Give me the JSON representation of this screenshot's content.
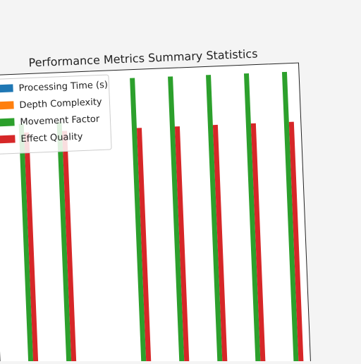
{
  "chart_data": {
    "type": "bar",
    "title": "Performance Metrics Summary Statistics",
    "xlabel": "",
    "ylabel": "",
    "categories": [
      "",
      "",
      "",
      "",
      "",
      "",
      ""
    ],
    "ylim": [
      0,
      1.05
    ],
    "grid": false,
    "legend_position": "top-left",
    "series": [
      {
        "name": "Processing Time (s)",
        "color": "#1f77b4",
        "values": [
          0,
          0,
          0,
          0,
          0,
          0,
          0
        ]
      },
      {
        "name": "Depth Complexity",
        "color": "#ff7f0e",
        "values": [
          0,
          0,
          0,
          0,
          0,
          0,
          0
        ]
      },
      {
        "name": "Movement Factor",
        "color": "#2ca02c",
        "values": [
          0.86,
          0.86,
          1.0,
          1.0,
          1.0,
          1.0,
          1.0
        ]
      },
      {
        "name": "Effect Quality",
        "color": "#d62728",
        "values": [
          0.83,
          0.83,
          0.83,
          0.83,
          0.83,
          0.83,
          0.83
        ]
      }
    ]
  }
}
